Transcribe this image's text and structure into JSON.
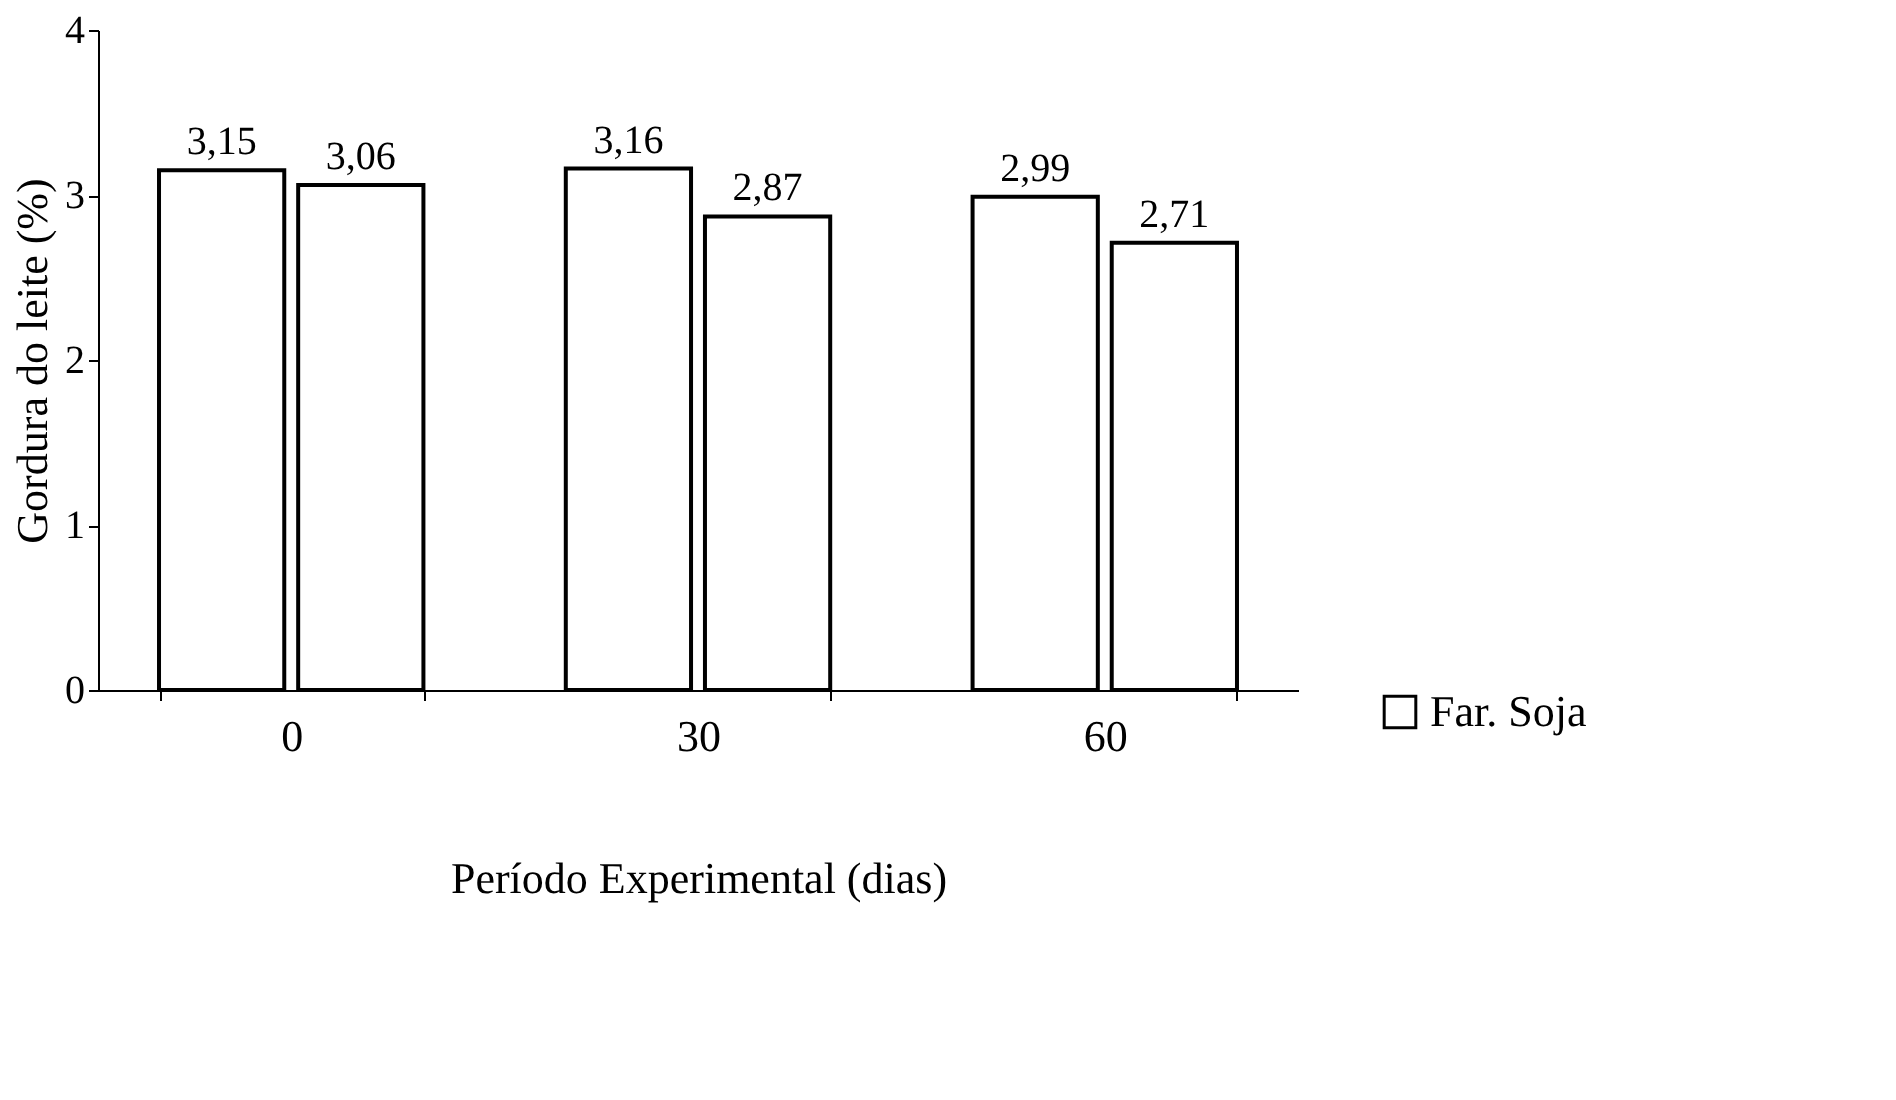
{
  "chart_data": {
    "type": "bar",
    "categories": [
      "0",
      "30",
      "60"
    ],
    "xlabel": "Período Experimental (dias)",
    "ylabel": "Gordura do leite (%)",
    "ylim": [
      0,
      4
    ],
    "yticks": [
      0,
      1,
      2,
      3,
      4
    ],
    "grid": false,
    "legend": "bottom right",
    "series": [
      {
        "name": "Far. Soja",
        "color": "#ffffff",
        "values": [
          3.15,
          3.16,
          2.99
        ],
        "value_labels": [
          "3,15",
          "3,16",
          "2,99"
        ]
      },
      {
        "color": "#ffffff",
        "values": [
          3.06,
          2.87,
          2.71
        ],
        "value_labels": [
          "3,06",
          "2,87",
          "2,71"
        ]
      }
    ]
  }
}
